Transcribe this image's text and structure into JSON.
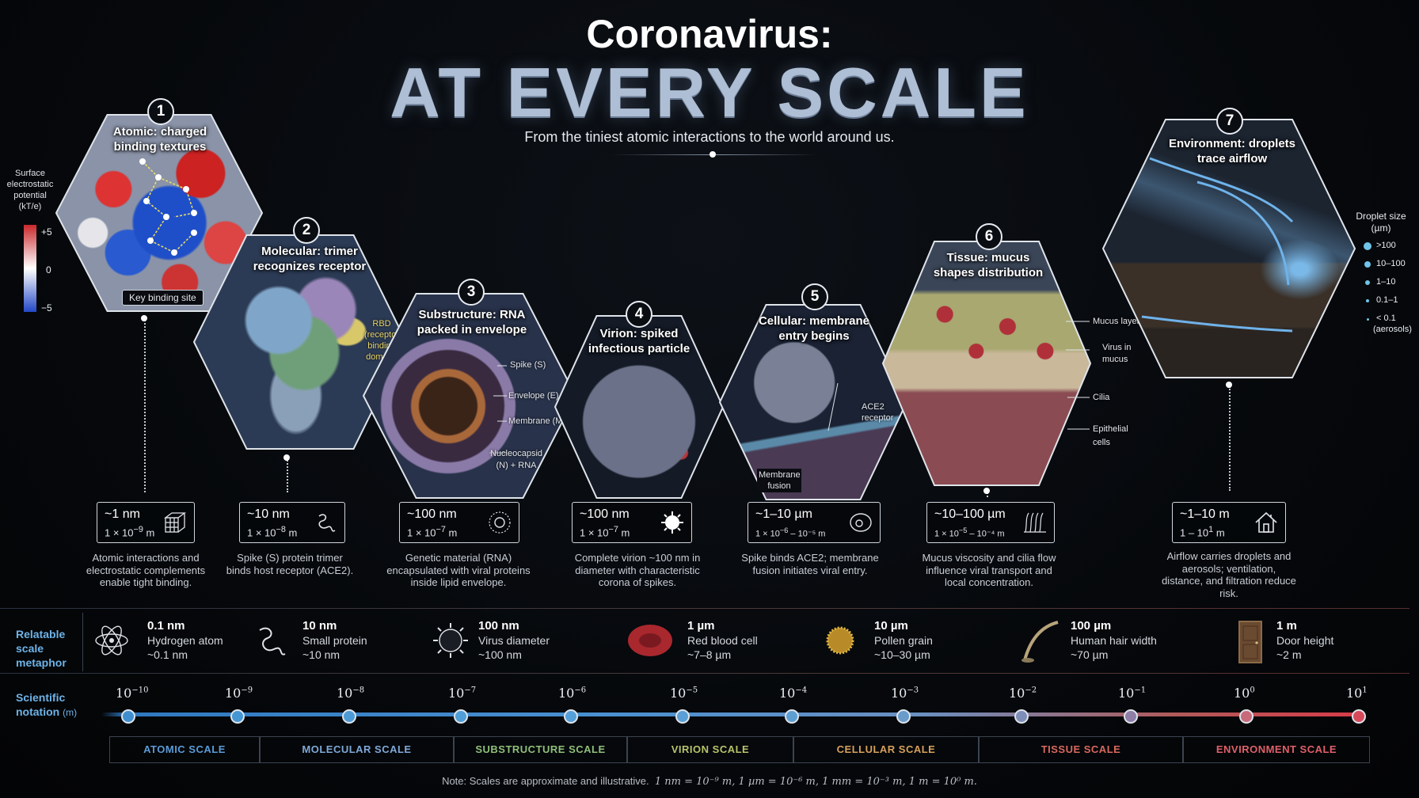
{
  "header": {
    "title_line1": "Coronavirus:",
    "title_line2": "AT EVERY SCALE",
    "subtitle": "From the tiniest atomic interactions to the world around us."
  },
  "potential_legend": {
    "title": "Surface electrostatic potential (kT/e)",
    "max": "+5",
    "mid": "0",
    "min": "−5"
  },
  "panels": [
    {
      "number": "1",
      "title": "Atomic: charged binding textures",
      "callouts": [
        "Key binding site"
      ],
      "size": "~1 nm",
      "sci_base": "1 × 10",
      "sci_exp": "−9",
      "sci_unit": "m",
      "icon": "atom-lattice-icon",
      "description": "Atomic interactions and electrostatic complements enable tight binding."
    },
    {
      "number": "2",
      "title": "Molecular: trimer recognizes receptor",
      "callouts": [
        "RBD (receptor binding domain)"
      ],
      "size": "~10 nm",
      "sci_base": "1 × 10",
      "sci_exp": "−8",
      "sci_unit": "m",
      "icon": "protein-icon",
      "description": "Spike (S) protein trimer binds host receptor (ACE2)."
    },
    {
      "number": "3",
      "title": "Substructure: RNA packed in envelope",
      "callouts": [
        "Spike (S)",
        "Envelope (E)",
        "Membrane (M)",
        "Nucleocapsid (N) + RNA"
      ],
      "size": "~100 nm",
      "sci_base": "1 × 10",
      "sci_exp": "−7",
      "sci_unit": "m",
      "icon": "rna-coil-icon",
      "description": "Genetic material (RNA) encapsulated with viral proteins inside lipid envelope."
    },
    {
      "number": "4",
      "title": "Virion: spiked infectious particle",
      "callouts": [],
      "size": "~100 nm",
      "sci_base": "1 × 10",
      "sci_exp": "−7",
      "sci_unit": "m",
      "icon": "virus-icon",
      "description": "Complete virion ~100 nm in diameter with characteristic corona of spikes."
    },
    {
      "number": "5",
      "title": "Cellular: membrane entry begins",
      "callouts": [
        "ACE2 receptor",
        "Membrane fusion"
      ],
      "size": "~1–10 µm",
      "sci_base": "1 × 10",
      "sci_exp": "−6",
      "sci_unit": "– 10⁻⁵ m",
      "icon": "cell-icon",
      "description": "Spike binds ACE2; membrane fusion initiates viral entry."
    },
    {
      "number": "6",
      "title": "Tissue: mucus shapes distribution",
      "callouts": [
        "Mucus layer",
        "Virus in mucus",
        "Cilia",
        "Epithelial cells"
      ],
      "size": "~10–100 µm",
      "sci_base": "1 × 10",
      "sci_exp": "−5",
      "sci_unit": "– 10⁻⁴ m",
      "icon": "cilia-icon",
      "description": "Mucus viscosity and cilia flow influence viral transport and local concentration."
    },
    {
      "number": "7",
      "title": "Environment: droplets trace airflow",
      "callouts": [],
      "size": "~1–10 m",
      "sci_base": "1 – 10",
      "sci_exp": "1",
      "sci_unit": "m",
      "icon": "house-icon",
      "description": "Airflow carries droplets and aerosols; ventilation, distance, and filtration reduce risk."
    }
  ],
  "droplet_legend": {
    "title": "Droplet size (µm)",
    "items": [
      ">100",
      "10–100",
      "1–10",
      "0.1–1",
      "< 0.1"
    ],
    "note": "(aerosols)"
  },
  "metaphor": {
    "label": "Relatable scale metaphor",
    "items": [
      {
        "value": "0.1 nm",
        "name": "Hydrogen atom",
        "size": "~0.1 nm",
        "icon": "atom-icon"
      },
      {
        "value": "10 nm",
        "name": "Small protein",
        "size": "~10 nm",
        "icon": "protein-icon"
      },
      {
        "value": "100 nm",
        "name": "Virus diameter",
        "size": "~100 nm",
        "icon": "virus-icon"
      },
      {
        "value": "1 µm",
        "name": "Red blood cell",
        "size": "~7–8 µm",
        "icon": "red-blood-cell-icon"
      },
      {
        "value": "10 µm",
        "name": "Pollen grain",
        "size": "~10–30 µm",
        "icon": "pollen-icon"
      },
      {
        "value": "100 µm",
        "name": "Human hair width",
        "size": "~70 µm",
        "icon": "hair-icon"
      },
      {
        "value": "1 m",
        "name": "Door height",
        "size": "~2 m",
        "icon": "door-icon"
      }
    ]
  },
  "axis": {
    "label": "Scientific notation",
    "unit": "(m)",
    "ticks": [
      {
        "base": "10",
        "exp": "−10"
      },
      {
        "base": "10",
        "exp": "−9"
      },
      {
        "base": "10",
        "exp": "−8"
      },
      {
        "base": "10",
        "exp": "−7"
      },
      {
        "base": "10",
        "exp": "−6"
      },
      {
        "base": "10",
        "exp": "−5"
      },
      {
        "base": "10",
        "exp": "−4"
      },
      {
        "base": "10",
        "exp": "−3"
      },
      {
        "base": "10",
        "exp": "−2"
      },
      {
        "base": "10",
        "exp": "−1"
      },
      {
        "base": "10",
        "exp": "0"
      },
      {
        "base": "10",
        "exp": "1"
      }
    ],
    "dot_colors": [
      "#3f8fd0",
      "#4596d4",
      "#4d9bd6",
      "#4f9ed8",
      "#559fd8",
      "#5aa0d6",
      "#5e9fd2",
      "#6a9ccb",
      "#7f8eb8",
      "#8f7ea8",
      "#c86a7a",
      "#d84a5a"
    ]
  },
  "bands": [
    {
      "label": "ATOMIC SCALE",
      "color": "#5a9bd8"
    },
    {
      "label": "MOLECULAR SCALE",
      "color": "#7fa8d8"
    },
    {
      "label": "SUBSTRUCTURE SCALE",
      "color": "#8fbf7a"
    },
    {
      "label": "VIRION SCALE",
      "color": "#b7c46a"
    },
    {
      "label": "CELLULAR SCALE",
      "color": "#d7a05a"
    },
    {
      "label": "TISSUE SCALE",
      "color": "#d8685e"
    },
    {
      "label": "ENVIRONMENT SCALE",
      "color": "#e0606a"
    }
  ],
  "note": {
    "prefix": "Note: Scales are approximate and illustrative.",
    "formula": "1 nm = 10⁻⁹ m,  1 µm = 10⁻⁶ m,  1 mm = 10⁻³ m,  1 m = 10⁰ m."
  }
}
